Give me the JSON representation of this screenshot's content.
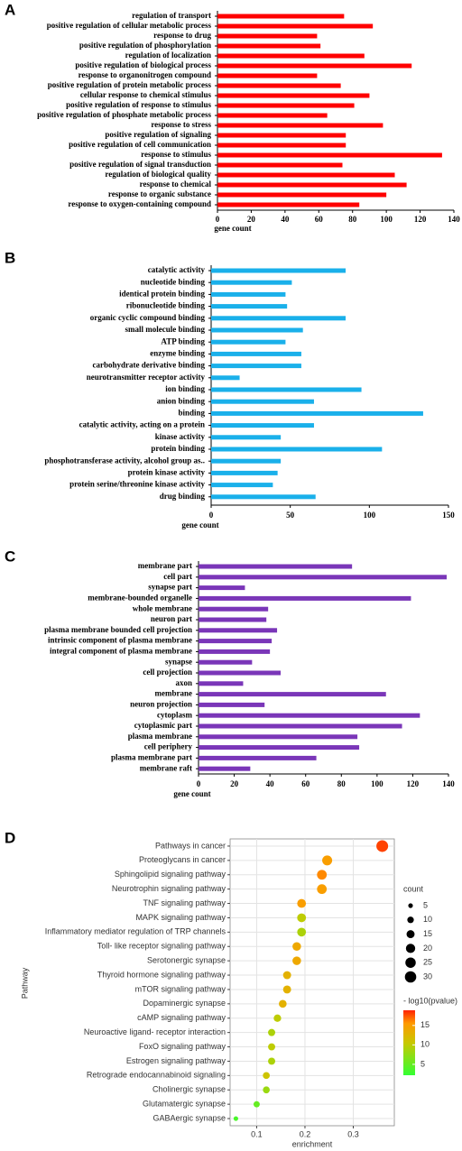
{
  "chart_data": [
    {
      "type": "bar",
      "panel": "A",
      "horizontal": true,
      "color": "#ff0000",
      "xlabel": "gene count",
      "categories": [
        "regulation of transport",
        "positive regulation of cellular metabolic process",
        "response to drug",
        "positive regulation of phosphorylation",
        "regulation of localization",
        "positive regulation of biological process",
        "response to organonitrogen compound",
        "positive regulation of protein metabolic process",
        "cellular response to chemical stimulus",
        "positive regulation of response to stimulus",
        "positive regulation of phosphate metabolic process",
        "response to stress",
        "positive regulation of signaling",
        "positive regulation of cell communication",
        "response to stimulus",
        "positive regulation of signal transduction",
        "regulation of biological quality",
        "response to chemical",
        "response to organic substance",
        "response to oxygen-containing compound"
      ],
      "values": [
        75,
        92,
        59,
        61,
        87,
        115,
        59,
        73,
        90,
        81,
        65,
        98,
        76,
        76,
        133,
        74,
        105,
        112,
        100,
        84
      ],
      "xlim": [
        0,
        140
      ],
      "xticks": [
        0,
        20,
        40,
        60,
        80,
        100,
        120,
        140
      ]
    },
    {
      "type": "bar",
      "panel": "B",
      "horizontal": true,
      "color": "#1ab0ea",
      "xlabel": "gene count",
      "categories": [
        "catalytic activity",
        "nucleotide binding",
        "identical protein binding",
        "ribonucleotide binding",
        "organic cyclic compound binding",
        "small molecule binding",
        "ATP binding",
        "enzyme binding",
        "carbohydrate derivative binding",
        "neurotransmitter receptor activity",
        "ion binding",
        "anion binding",
        "binding",
        "catalytic activity, acting on a protein",
        "kinase activity",
        "protein binding",
        "phosphotransferase activity, alcohol group as..",
        "protein kinase activity",
        "protein serine/threonine kinase activity",
        "drug binding"
      ],
      "values": [
        85,
        51,
        47,
        48,
        85,
        58,
        47,
        57,
        57,
        18,
        95,
        65,
        134,
        65,
        44,
        108,
        44,
        42,
        39,
        66
      ],
      "xlim": [
        0,
        150
      ],
      "xticks": [
        0,
        50,
        100,
        150
      ]
    },
    {
      "type": "bar",
      "panel": "C",
      "horizontal": true,
      "color": "#7a36b8",
      "xlabel": "gene count",
      "categories": [
        "membrane part",
        "cell part",
        "synapse part",
        "membrane-bounded organelle",
        "whole membrane",
        "neuron part",
        "plasma membrane bounded cell projection",
        "intrinsic component of plasma membrane",
        "integral component of plasma membrane",
        "synapse",
        "cell projection",
        "axon",
        "membrane",
        "neuron projection",
        "cytoplasm",
        "cytoplasmic part",
        "plasma membrane",
        "cell periphery",
        "plasma membrane part",
        "membrane raft"
      ],
      "values": [
        86,
        139,
        26,
        119,
        39,
        38,
        44,
        41,
        40,
        30,
        46,
        25,
        105,
        37,
        124,
        114,
        89,
        90,
        66,
        29
      ],
      "xlim": [
        0,
        140
      ],
      "xticks": [
        0,
        20,
        40,
        60,
        80,
        100,
        120,
        140
      ]
    },
    {
      "type": "scatter",
      "panel": "D",
      "xlabel": "enrichment",
      "ylabel": "Pathway",
      "grid": true,
      "categories": [
        "Pathways in cancer",
        "Proteoglycans in cancer",
        "Sphingolipid signaling pathway",
        "Neurotrophin signaling pathway",
        "TNF signaling pathway",
        "MAPK signaling pathway",
        "Inflammatory mediator regulation of TRP channels",
        "Toll- like receptor signaling pathway",
        "Serotonergic synapse",
        "Thyroid hormone signaling pathway",
        "mTOR signaling pathway",
        "Dopaminergic synapse",
        "cAMP signaling pathway",
        "Neuroactive ligand- receptor interaction",
        "FoxO signaling pathway",
        "Estrogen signaling pathway",
        "Retrograde endocannabinoid signaling",
        "Cholinergic synapse",
        "Glutamatergic synapse",
        "GABAergic synapse"
      ],
      "x": [
        0.36,
        0.246,
        0.235,
        0.235,
        0.193,
        0.193,
        0.193,
        0.183,
        0.183,
        0.163,
        0.163,
        0.154,
        0.143,
        0.131,
        0.131,
        0.131,
        0.12,
        0.12,
        0.1,
        0.057
      ],
      "sizes": [
        32,
        23,
        22,
        22,
        18,
        18,
        18,
        17,
        17,
        15,
        15,
        14,
        13,
        12,
        12,
        12,
        11,
        11,
        9,
        5
      ],
      "color_values": [
        18,
        15,
        16,
        15,
        15,
        10,
        9,
        14,
        14,
        13,
        13,
        13,
        10,
        9,
        10,
        9,
        11,
        8,
        5,
        3.5
      ],
      "xlim": [
        0.045,
        0.385
      ],
      "xticks": [
        0.1,
        0.2,
        0.3
      ],
      "size_legend_title": "count",
      "size_ticks": [
        5,
        10,
        15,
        20,
        25,
        30
      ],
      "color_legend_title": "- log10(pvalue)",
      "colorlim": [
        2.2,
        18.9
      ],
      "colorticks": [
        5,
        10,
        15
      ]
    }
  ]
}
